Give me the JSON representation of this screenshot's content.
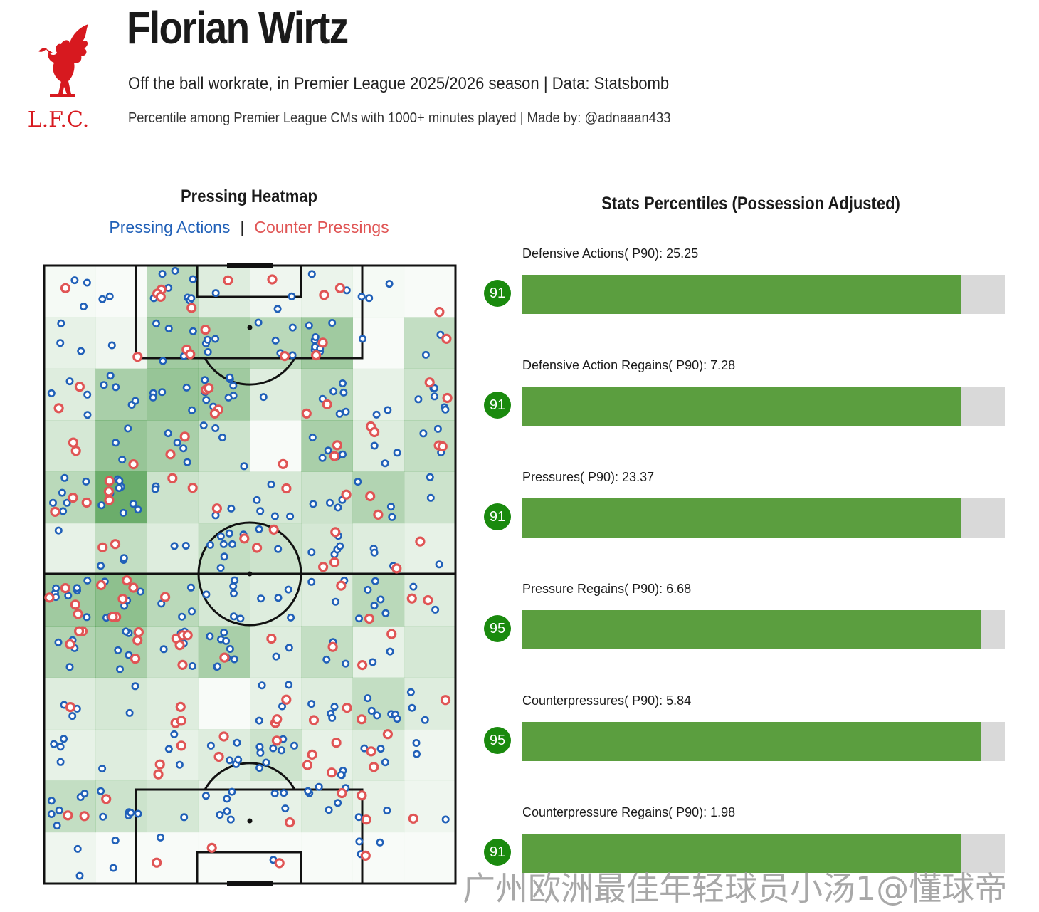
{
  "header": {
    "title": "Florian Wirtz",
    "subtitle": "Off the ball workrate, in Premier League 2025/2026 season | Data: Statsbomb",
    "subsubtitle": "Percentile among Premier League CMs with 1000+ minutes played | Made by: @adnaaan433",
    "logo_text": "L.F.C."
  },
  "colors": {
    "lfc_red": "#d7191f",
    "pressing_actions": "#2060b8",
    "counter_pressings": "#e05555",
    "heat_green": "#2e8b2e",
    "bar_fill": "#5b9e3f",
    "bar_track": "#d9d9d9",
    "badge": "#1a8a0e"
  },
  "heatmap_panel": {
    "title": "Pressing Heatmap",
    "legend_pressing": "Pressing Actions",
    "legend_separator": "|",
    "legend_counter": "Counter Pressings"
  },
  "stats_panel": {
    "title": "Stats Percentiles (Possession Adjusted)"
  },
  "chart_data": [
    {
      "type": "heatmap",
      "grid_rows": 12,
      "grid_cols": 8,
      "orientation": "vertical pitch, attacking toward top",
      "intensity": [
        [
          0.02,
          0.0,
          0.35,
          0.15,
          0.05,
          0.08,
          0.02,
          0.0
        ],
        [
          0.1,
          0.05,
          0.5,
          0.45,
          0.35,
          0.5,
          0.0,
          0.3
        ],
        [
          0.15,
          0.45,
          0.55,
          0.5,
          0.15,
          0.35,
          0.1,
          0.25
        ],
        [
          0.2,
          0.55,
          0.45,
          0.25,
          0.0,
          0.45,
          0.15,
          0.3
        ],
        [
          0.35,
          0.8,
          0.25,
          0.2,
          0.2,
          0.25,
          0.4,
          0.25
        ],
        [
          0.1,
          0.3,
          0.15,
          0.3,
          0.25,
          0.2,
          0.15,
          0.1
        ],
        [
          0.5,
          0.6,
          0.35,
          0.2,
          0.15,
          0.15,
          0.35,
          0.15
        ],
        [
          0.4,
          0.45,
          0.25,
          0.45,
          0.15,
          0.3,
          0.1,
          0.2
        ],
        [
          0.15,
          0.2,
          0.15,
          0.0,
          0.1,
          0.15,
          0.3,
          0.15
        ],
        [
          0.1,
          0.15,
          0.1,
          0.15,
          0.25,
          0.1,
          0.15,
          0.05
        ],
        [
          0.3,
          0.25,
          0.2,
          0.1,
          0.1,
          0.15,
          0.1,
          0.05
        ],
        [
          0.05,
          0.0,
          0.0,
          0.0,
          0.0,
          0.0,
          0.0,
          0.0
        ]
      ],
      "pressing_actions_approx_count": 330,
      "counter_pressings_approx_count": 130
    },
    {
      "type": "bar",
      "categories": [
        "Defensive Actions( P90): 25.25",
        "Defensive Action Regains( P90): 7.28",
        "Pressures( P90): 23.37",
        "Pressure Regains( P90): 6.68",
        "Counterpressures( P90): 5.84",
        "Counterpressure Regains( P90): 1.98"
      ],
      "values": [
        91,
        91,
        91,
        95,
        95,
        91
      ],
      "xlim": [
        0,
        100
      ],
      "orientation": "horizontal"
    }
  ],
  "watermark": "广州欧洲最佳年轻球员小汤1@懂球帝"
}
